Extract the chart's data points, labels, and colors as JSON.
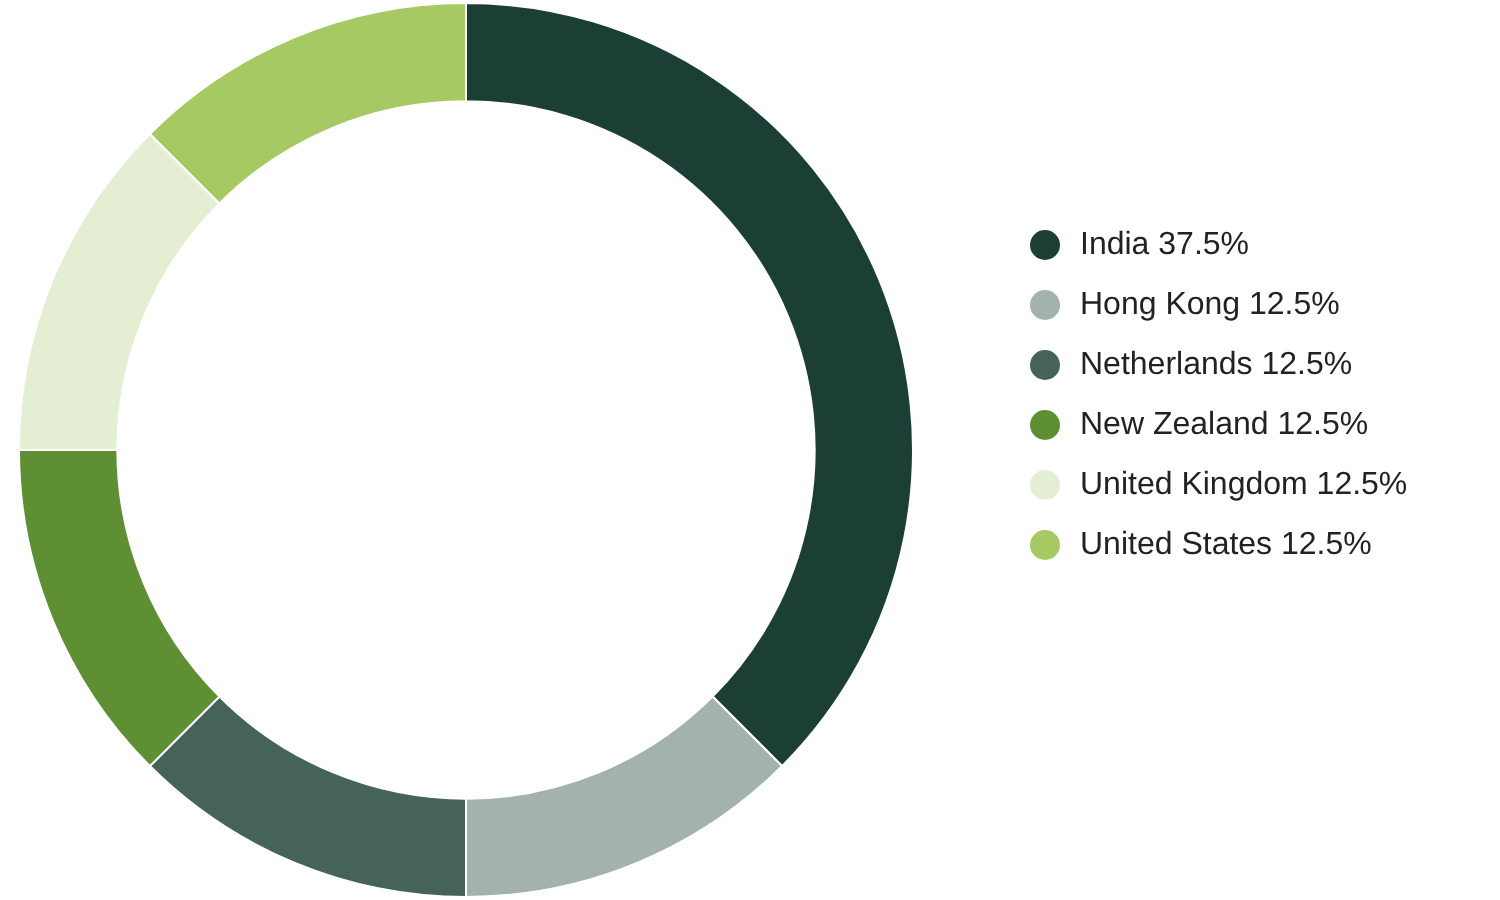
{
  "chart_data": {
    "type": "donut",
    "categories": [
      "India",
      "Hong Kong",
      "Netherlands",
      "New Zealand",
      "United Kingdom",
      "United States"
    ],
    "values": [
      37.5,
      12.5,
      12.5,
      12.5,
      12.5,
      12.5
    ],
    "value_labels": [
      "37.5%",
      "12.5%",
      "12.5%",
      "12.5%",
      "12.5%",
      "12.5%"
    ],
    "colors": [
      "#1b3f35",
      "#a3b2ac",
      "#46635a",
      "#5f8f33",
      "#e3eed3",
      "#a6c964"
    ],
    "legend": "right"
  }
}
